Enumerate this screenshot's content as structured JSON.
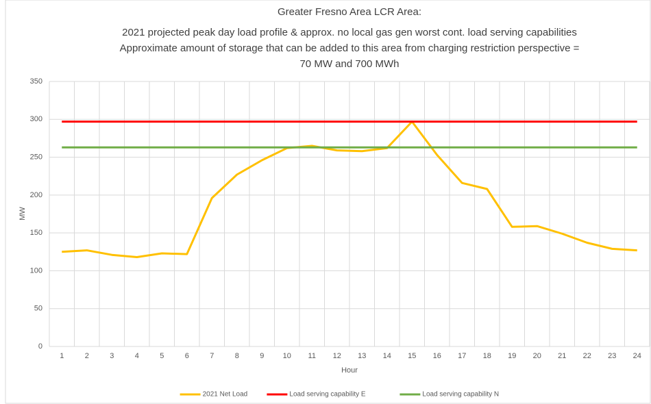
{
  "chart_data": {
    "type": "line",
    "title": [
      "Greater Fresno Area LCR Area:",
      "2021 projected peak day load profile & approx. no local gas gen worst cont. load serving capabilities",
      "Approximate amount of storage that can be added to this area from charging restriction perspective =",
      "70 MW and 700 MWh"
    ],
    "x_label": "Hour",
    "y_label": "MW",
    "categories": [
      "1",
      "2",
      "3",
      "4",
      "5",
      "6",
      "7",
      "8",
      "9",
      "10",
      "11",
      "12",
      "13",
      "14",
      "15",
      "16",
      "17",
      "18",
      "19",
      "20",
      "21",
      "22",
      "23",
      "24"
    ],
    "series": [
      {
        "name": "2021 Net Load",
        "color": "#ffc000",
        "values": [
          125,
          127,
          121,
          118,
          123,
          122,
          196,
          227,
          246,
          262,
          265,
          259,
          258,
          262,
          297,
          253,
          216,
          208,
          158,
          159,
          149,
          137,
          129,
          127
        ]
      },
      {
        "name": "Load serving capability E",
        "color": "#ff0000",
        "values": [
          297,
          297,
          297,
          297,
          297,
          297,
          297,
          297,
          297,
          297,
          297,
          297,
          297,
          297,
          297,
          297,
          297,
          297,
          297,
          297,
          297,
          297,
          297,
          297
        ]
      },
      {
        "name": "Load serving capability N",
        "color": "#70ad47",
        "values": [
          263,
          263,
          263,
          263,
          263,
          263,
          263,
          263,
          263,
          263,
          263,
          263,
          263,
          263,
          263,
          263,
          263,
          263,
          263,
          263,
          263,
          263,
          263,
          263
        ]
      }
    ],
    "ylim": [
      0,
      350
    ],
    "yticks": [
      0,
      50,
      100,
      150,
      200,
      250,
      300,
      350
    ],
    "grid": true,
    "legend": "bottom"
  }
}
